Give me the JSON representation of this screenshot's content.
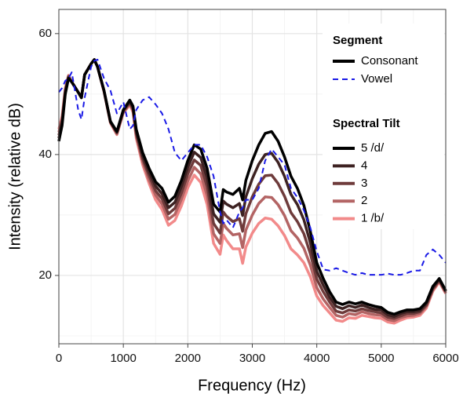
{
  "chart_data": {
    "type": "line",
    "x_label": "Frequency (Hz)",
    "y_label": "Intensity (relative dB)",
    "xlim": [
      0,
      6000
    ],
    "ylim": [
      8.7,
      64
    ],
    "xticks": [
      0,
      1000,
      2000,
      3000,
      4000,
      5000,
      6000
    ],
    "yticks": [
      20,
      40,
      60
    ],
    "grid": true,
    "minor_grid": true,
    "legend_position": "top-right",
    "x": [
      0,
      50,
      100,
      150,
      200,
      300,
      350,
      400,
      500,
      550,
      600,
      700,
      800,
      900,
      1000,
      1100,
      1150,
      1200,
      1300,
      1400,
      1500,
      1600,
      1700,
      1800,
      1900,
      2000,
      2100,
      2200,
      2300,
      2400,
      2500,
      2550,
      2600,
      2700,
      2800,
      2850,
      2900,
      3000,
      3100,
      3200,
      3300,
      3400,
      3500,
      3600,
      3700,
      3800,
      3900,
      4000,
      4100,
      4200,
      4300,
      4400,
      4500,
      4600,
      4700,
      4800,
      4900,
      5000,
      5100,
      5200,
      5300,
      5400,
      5500,
      5600,
      5700,
      5800,
      5900,
      6000
    ],
    "segment_legend": {
      "title": "Segment",
      "consonant": {
        "name": "Consonant",
        "color": "#000000"
      }
    },
    "vowel": {
      "name": "Vowel",
      "color": "#1a1ae6",
      "dashed": true,
      "values": [
        50.3,
        51,
        52.2,
        52.6,
        53.6,
        47.4,
        45.8,
        49.4,
        54.5,
        55.5,
        55.7,
        52.6,
        50.6,
        46.8,
        48.7,
        44.2,
        44.8,
        47.4,
        49,
        49.5,
        48.3,
        46.8,
        44.2,
        40.3,
        39,
        40.3,
        41.6,
        41.6,
        39.6,
        36.4,
        30.5,
        28.6,
        29.2,
        27.9,
        30.5,
        31.2,
        32.5,
        32.5,
        34.4,
        39,
        40.9,
        39.6,
        38.3,
        34.4,
        32.9,
        30.8,
        27.9,
        24,
        21,
        20.8,
        21.2,
        20.8,
        20.4,
        20.1,
        20.4,
        20.1,
        20.1,
        20.1,
        20.3,
        20.1,
        20.1,
        20.4,
        20.8,
        20.8,
        23.4,
        24.3,
        23.4,
        22.1
      ]
    },
    "tilt_legend_title": "Spectral Tilt",
    "series": [
      {
        "name": "5 /d/",
        "color": "#000000",
        "values": [
          42.2,
          44.8,
          50,
          52.6,
          52,
          50.3,
          49.4,
          53.2,
          55,
          55.7,
          54.5,
          50.6,
          45.5,
          43.8,
          47.4,
          49,
          48,
          44.2,
          40.3,
          37.7,
          35.5,
          34.4,
          32.1,
          33.1,
          35.7,
          39,
          41.6,
          40.9,
          37.7,
          31.8,
          30.5,
          34.2,
          33.8,
          33.4,
          34.4,
          32.5,
          35.7,
          39,
          41.6,
          43.5,
          43.8,
          42.2,
          39.6,
          36.4,
          34.4,
          31.6,
          27.3,
          22.1,
          19.5,
          17.3,
          15.6,
          15.2,
          15.6,
          15.3,
          15.6,
          15.2,
          14.9,
          14.7,
          13.9,
          13.6,
          14,
          14.3,
          14.3,
          14.5,
          15.6,
          18.2,
          19.5,
          17.5
        ]
      },
      {
        "name": "4",
        "color": "#3d2222",
        "values": [
          42.7,
          45.2,
          50.3,
          52.7,
          52,
          50.3,
          49.4,
          53.2,
          55,
          55.7,
          54.5,
          50.6,
          45.4,
          43.7,
          47.3,
          48.8,
          47.8,
          43.8,
          39.8,
          37.1,
          34.8,
          33.5,
          31.2,
          32.1,
          34.7,
          37.9,
          40.4,
          39.5,
          36.2,
          30.2,
          28.8,
          32.3,
          31.8,
          31.2,
          31.9,
          29.9,
          33,
          36,
          38.4,
          40,
          40.2,
          38.7,
          36.4,
          33.4,
          31.7,
          29.2,
          25.4,
          20.7,
          18.4,
          16.4,
          14.9,
          14.5,
          15,
          14.7,
          15.1,
          14.7,
          14.4,
          14.3,
          13.5,
          13.2,
          13.7,
          14,
          14,
          14.2,
          15.4,
          18,
          19.4,
          17.4
        ]
      },
      {
        "name": "3",
        "color": "#6e3b3b",
        "values": [
          43.2,
          45.6,
          50.5,
          52.9,
          52,
          50.3,
          49.4,
          53.2,
          55,
          55.7,
          54.5,
          50.5,
          45.4,
          43.6,
          47.2,
          48.6,
          47.5,
          43.5,
          39.3,
          36.5,
          34,
          32.7,
          30.2,
          31.1,
          33.6,
          36.8,
          39.1,
          38.2,
          34.7,
          28.6,
          27,
          30.5,
          29.8,
          28.9,
          29.4,
          27.3,
          30.2,
          33,
          35.1,
          36.5,
          36.6,
          35.2,
          33.1,
          30.4,
          28.9,
          26.9,
          23.6,
          19.4,
          17.3,
          15.6,
          14.1,
          13.8,
          14.3,
          14.1,
          14.5,
          14.2,
          14,
          13.8,
          13.1,
          12.9,
          13.3,
          13.7,
          13.7,
          14,
          15.1,
          17.8,
          19.2,
          17.3
        ]
      },
      {
        "name": "2",
        "color": "#b36464",
        "values": [
          43.7,
          45.9,
          50.8,
          53,
          52,
          50.3,
          49.4,
          53.2,
          55,
          55.7,
          54.5,
          50.5,
          45.3,
          43.4,
          47,
          48.4,
          47.3,
          43.1,
          38.8,
          35.8,
          33.3,
          31.8,
          29.3,
          30.1,
          32.6,
          35.6,
          37.9,
          36.8,
          33.2,
          26.9,
          25.3,
          28.6,
          27.8,
          26.7,
          26.9,
          24.6,
          27.5,
          30,
          31.9,
          33,
          32.9,
          31.7,
          29.9,
          27.4,
          26.2,
          24.5,
          21.7,
          18,
          16.1,
          14.7,
          13.4,
          13.1,
          13.7,
          13.5,
          14,
          13.7,
          13.5,
          13.4,
          12.7,
          12.5,
          13,
          13.3,
          13.4,
          13.7,
          14.9,
          17.6,
          19.1,
          17.1
        ]
      },
      {
        "name": "1 /b/",
        "color": "#f28a8a",
        "values": [
          44.2,
          46.3,
          51,
          53.1,
          52,
          50.3,
          49.4,
          53.2,
          55,
          55.7,
          54.5,
          50.4,
          45.2,
          43.3,
          46.9,
          48.2,
          47,
          42.7,
          38.3,
          35.2,
          32.5,
          30.9,
          28.3,
          29.1,
          31.5,
          34.5,
          36.6,
          35.4,
          31.7,
          25.3,
          23.5,
          26.7,
          25.8,
          24.4,
          24.4,
          22,
          24.7,
          27,
          28.6,
          29.5,
          29.3,
          28.2,
          26.6,
          24.4,
          23.4,
          22.1,
          19.8,
          16.6,
          15,
          13.8,
          12.6,
          12.4,
          13,
          12.9,
          13.4,
          13.2,
          13,
          12.9,
          12.3,
          12.1,
          12.6,
          13,
          13.1,
          13.4,
          14.6,
          17.4,
          18.9,
          17
        ]
      }
    ]
  }
}
